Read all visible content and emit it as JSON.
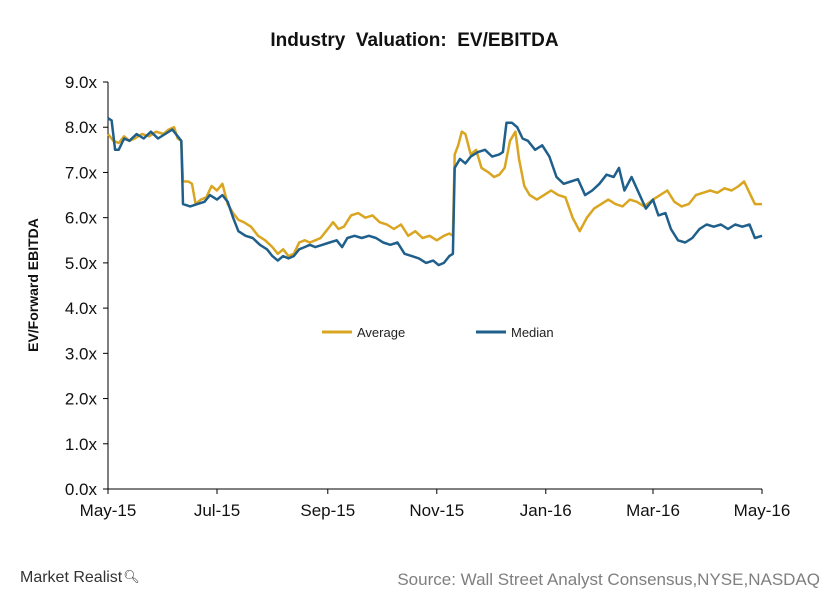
{
  "chart_data": {
    "type": "line",
    "title": "Industry  Valuation:  EV/EBITDA",
    "ylabel": "EV/Forward EBITDA",
    "xlabel": "",
    "ylim": [
      0,
      9
    ],
    "yticks": [
      "0.0x",
      "1.0x",
      "2.0x",
      "3.0x",
      "4.0x",
      "5.0x",
      "6.0x",
      "7.0x",
      "8.0x",
      "9.0x"
    ],
    "x_range": [
      "2015-05-01",
      "2016-05-01"
    ],
    "xticks": [
      {
        "date": "2015-05-01",
        "label": "May-15"
      },
      {
        "date": "2015-07-01",
        "label": "Jul-15"
      },
      {
        "date": "2015-09-01",
        "label": "Sep-15"
      },
      {
        "date": "2015-11-01",
        "label": "Nov-15"
      },
      {
        "date": "2016-01-01",
        "label": "Jan-16"
      },
      {
        "date": "2016-03-01",
        "label": "Mar-16"
      },
      {
        "date": "2016-05-01",
        "label": "May-16"
      }
    ],
    "grid": false,
    "legend": "center",
    "series": [
      {
        "name": "Average",
        "color": "#DAA520",
        "points": [
          [
            "2015-05-01",
            7.85
          ],
          [
            "2015-05-04",
            7.7
          ],
          [
            "2015-05-07",
            7.65
          ],
          [
            "2015-05-10",
            7.8
          ],
          [
            "2015-05-13",
            7.7
          ],
          [
            "2015-05-16",
            7.75
          ],
          [
            "2015-05-20",
            7.85
          ],
          [
            "2015-05-24",
            7.8
          ],
          [
            "2015-05-28",
            7.9
          ],
          [
            "2015-06-01",
            7.85
          ],
          [
            "2015-06-04",
            7.95
          ],
          [
            "2015-06-07",
            8.0
          ],
          [
            "2015-06-09",
            7.75
          ],
          [
            "2015-06-11",
            7.7
          ],
          [
            "2015-06-12",
            6.8
          ],
          [
            "2015-06-15",
            6.8
          ],
          [
            "2015-06-17",
            6.75
          ],
          [
            "2015-06-19",
            6.3
          ],
          [
            "2015-06-22",
            6.4
          ],
          [
            "2015-06-25",
            6.45
          ],
          [
            "2015-06-28",
            6.7
          ],
          [
            "2015-07-01",
            6.6
          ],
          [
            "2015-07-04",
            6.75
          ],
          [
            "2015-07-07",
            6.3
          ],
          [
            "2015-07-10",
            6.1
          ],
          [
            "2015-07-13",
            5.95
          ],
          [
            "2015-07-16",
            5.9
          ],
          [
            "2015-07-20",
            5.8
          ],
          [
            "2015-07-24",
            5.6
          ],
          [
            "2015-07-28",
            5.5
          ],
          [
            "2015-08-01",
            5.35
          ],
          [
            "2015-08-04",
            5.2
          ],
          [
            "2015-08-07",
            5.3
          ],
          [
            "2015-08-10",
            5.15
          ],
          [
            "2015-08-13",
            5.2
          ],
          [
            "2015-08-16",
            5.45
          ],
          [
            "2015-08-19",
            5.5
          ],
          [
            "2015-08-22",
            5.45
          ],
          [
            "2015-08-25",
            5.5
          ],
          [
            "2015-08-28",
            5.55
          ],
          [
            "2015-09-01",
            5.75
          ],
          [
            "2015-09-04",
            5.9
          ],
          [
            "2015-09-07",
            5.75
          ],
          [
            "2015-09-10",
            5.8
          ],
          [
            "2015-09-14",
            6.05
          ],
          [
            "2015-09-18",
            6.1
          ],
          [
            "2015-09-22",
            6.0
          ],
          [
            "2015-09-26",
            6.05
          ],
          [
            "2015-09-30",
            5.9
          ],
          [
            "2015-10-04",
            5.85
          ],
          [
            "2015-10-08",
            5.75
          ],
          [
            "2015-10-12",
            5.85
          ],
          [
            "2015-10-16",
            5.6
          ],
          [
            "2015-10-20",
            5.7
          ],
          [
            "2015-10-24",
            5.55
          ],
          [
            "2015-10-28",
            5.6
          ],
          [
            "2015-11-01",
            5.5
          ],
          [
            "2015-11-05",
            5.6
          ],
          [
            "2015-11-08",
            5.65
          ],
          [
            "2015-11-10",
            5.6
          ],
          [
            "2015-11-11",
            7.4
          ],
          [
            "2015-11-13",
            7.6
          ],
          [
            "2015-11-15",
            7.9
          ],
          [
            "2015-11-17",
            7.85
          ],
          [
            "2015-11-20",
            7.4
          ],
          [
            "2015-11-23",
            7.5
          ],
          [
            "2015-11-26",
            7.1
          ],
          [
            "2015-11-30",
            7.0
          ],
          [
            "2015-12-03",
            6.9
          ],
          [
            "2015-12-06",
            6.95
          ],
          [
            "2015-12-09",
            7.1
          ],
          [
            "2015-12-12",
            7.7
          ],
          [
            "2015-12-15",
            7.9
          ],
          [
            "2015-12-17",
            7.3
          ],
          [
            "2015-12-20",
            6.7
          ],
          [
            "2015-12-23",
            6.5
          ],
          [
            "2015-12-27",
            6.4
          ],
          [
            "2015-12-31",
            6.5
          ],
          [
            "2016-01-04",
            6.6
          ],
          [
            "2016-01-08",
            6.5
          ],
          [
            "2016-01-12",
            6.45
          ],
          [
            "2016-01-16",
            6.0
          ],
          [
            "2016-01-20",
            5.7
          ],
          [
            "2016-01-24",
            6.0
          ],
          [
            "2016-01-28",
            6.2
          ],
          [
            "2016-02-01",
            6.3
          ],
          [
            "2016-02-05",
            6.4
          ],
          [
            "2016-02-09",
            6.3
          ],
          [
            "2016-02-13",
            6.25
          ],
          [
            "2016-02-17",
            6.4
          ],
          [
            "2016-02-21",
            6.35
          ],
          [
            "2016-02-25",
            6.25
          ],
          [
            "2016-03-01",
            6.4
          ],
          [
            "2016-03-05",
            6.5
          ],
          [
            "2016-03-09",
            6.6
          ],
          [
            "2016-03-13",
            6.35
          ],
          [
            "2016-03-17",
            6.25
          ],
          [
            "2016-03-21",
            6.3
          ],
          [
            "2016-03-25",
            6.5
          ],
          [
            "2016-03-29",
            6.55
          ],
          [
            "2016-04-02",
            6.6
          ],
          [
            "2016-04-06",
            6.55
          ],
          [
            "2016-04-10",
            6.65
          ],
          [
            "2016-04-14",
            6.6
          ],
          [
            "2016-04-18",
            6.7
          ],
          [
            "2016-04-21",
            6.8
          ],
          [
            "2016-04-24",
            6.55
          ],
          [
            "2016-04-27",
            6.3
          ],
          [
            "2016-05-01",
            6.3
          ]
        ]
      },
      {
        "name": "Median",
        "color": "#1F5F8B",
        "points": [
          [
            "2015-05-01",
            8.2
          ],
          [
            "2015-05-03",
            8.15
          ],
          [
            "2015-05-05",
            7.5
          ],
          [
            "2015-05-07",
            7.5
          ],
          [
            "2015-05-10",
            7.75
          ],
          [
            "2015-05-13",
            7.7
          ],
          [
            "2015-05-17",
            7.85
          ],
          [
            "2015-05-21",
            7.75
          ],
          [
            "2015-05-25",
            7.9
          ],
          [
            "2015-05-29",
            7.75
          ],
          [
            "2015-06-02",
            7.85
          ],
          [
            "2015-06-06",
            7.95
          ],
          [
            "2015-06-09",
            7.8
          ],
          [
            "2015-06-11",
            7.7
          ],
          [
            "2015-06-12",
            6.3
          ],
          [
            "2015-06-16",
            6.25
          ],
          [
            "2015-06-20",
            6.3
          ],
          [
            "2015-06-24",
            6.35
          ],
          [
            "2015-06-27",
            6.5
          ],
          [
            "2015-07-01",
            6.4
          ],
          [
            "2015-07-04",
            6.5
          ],
          [
            "2015-07-07",
            6.35
          ],
          [
            "2015-07-10",
            6.0
          ],
          [
            "2015-07-13",
            5.7
          ],
          [
            "2015-07-17",
            5.6
          ],
          [
            "2015-07-21",
            5.55
          ],
          [
            "2015-07-25",
            5.4
          ],
          [
            "2015-07-29",
            5.3
          ],
          [
            "2015-08-01",
            5.15
          ],
          [
            "2015-08-04",
            5.05
          ],
          [
            "2015-08-07",
            5.15
          ],
          [
            "2015-08-10",
            5.1
          ],
          [
            "2015-08-13",
            5.15
          ],
          [
            "2015-08-16",
            5.3
          ],
          [
            "2015-08-19",
            5.35
          ],
          [
            "2015-08-22",
            5.4
          ],
          [
            "2015-08-25",
            5.35
          ],
          [
            "2015-08-29",
            5.4
          ],
          [
            "2015-09-02",
            5.45
          ],
          [
            "2015-09-06",
            5.5
          ],
          [
            "2015-09-09",
            5.35
          ],
          [
            "2015-09-12",
            5.55
          ],
          [
            "2015-09-16",
            5.6
          ],
          [
            "2015-09-20",
            5.55
          ],
          [
            "2015-09-24",
            5.6
          ],
          [
            "2015-09-28",
            5.55
          ],
          [
            "2015-10-02",
            5.45
          ],
          [
            "2015-10-06",
            5.4
          ],
          [
            "2015-10-10",
            5.45
          ],
          [
            "2015-10-14",
            5.2
          ],
          [
            "2015-10-18",
            5.15
          ],
          [
            "2015-10-22",
            5.1
          ],
          [
            "2015-10-26",
            5.0
          ],
          [
            "2015-10-30",
            5.05
          ],
          [
            "2015-11-02",
            4.95
          ],
          [
            "2015-11-05",
            5.0
          ],
          [
            "2015-11-08",
            5.15
          ],
          [
            "2015-11-10",
            5.2
          ],
          [
            "2015-11-11",
            7.1
          ],
          [
            "2015-11-14",
            7.3
          ],
          [
            "2015-11-17",
            7.2
          ],
          [
            "2015-11-20",
            7.35
          ],
          [
            "2015-11-24",
            7.45
          ],
          [
            "2015-11-28",
            7.5
          ],
          [
            "2015-12-02",
            7.35
          ],
          [
            "2015-12-06",
            7.4
          ],
          [
            "2015-12-08",
            7.45
          ],
          [
            "2015-12-10",
            8.1
          ],
          [
            "2015-12-13",
            8.1
          ],
          [
            "2015-12-16",
            8.0
          ],
          [
            "2015-12-19",
            7.75
          ],
          [
            "2015-12-22",
            7.7
          ],
          [
            "2015-12-26",
            7.5
          ],
          [
            "2015-12-30",
            7.6
          ],
          [
            "2016-01-03",
            7.35
          ],
          [
            "2016-01-07",
            6.9
          ],
          [
            "2016-01-11",
            6.75
          ],
          [
            "2016-01-15",
            6.8
          ],
          [
            "2016-01-19",
            6.85
          ],
          [
            "2016-01-23",
            6.5
          ],
          [
            "2016-01-27",
            6.6
          ],
          [
            "2016-01-31",
            6.75
          ],
          [
            "2016-02-04",
            6.95
          ],
          [
            "2016-02-08",
            6.9
          ],
          [
            "2016-02-11",
            7.1
          ],
          [
            "2016-02-14",
            6.6
          ],
          [
            "2016-02-18",
            6.9
          ],
          [
            "2016-02-22",
            6.55
          ],
          [
            "2016-02-26",
            6.2
          ],
          [
            "2016-03-01",
            6.4
          ],
          [
            "2016-03-04",
            6.05
          ],
          [
            "2016-03-08",
            6.1
          ],
          [
            "2016-03-11",
            5.75
          ],
          [
            "2016-03-15",
            5.5
          ],
          [
            "2016-03-19",
            5.45
          ],
          [
            "2016-03-23",
            5.55
          ],
          [
            "2016-03-27",
            5.75
          ],
          [
            "2016-03-31",
            5.85
          ],
          [
            "2016-04-04",
            5.8
          ],
          [
            "2016-04-08",
            5.85
          ],
          [
            "2016-04-12",
            5.75
          ],
          [
            "2016-04-16",
            5.85
          ],
          [
            "2016-04-20",
            5.8
          ],
          [
            "2016-04-24",
            5.85
          ],
          [
            "2016-04-27",
            5.55
          ],
          [
            "2016-05-01",
            5.6
          ]
        ]
      }
    ]
  },
  "footer": {
    "brand": "Market Realist",
    "source": "Source: Wall Street Analyst Consensus,NYSE,NASDAQ"
  }
}
